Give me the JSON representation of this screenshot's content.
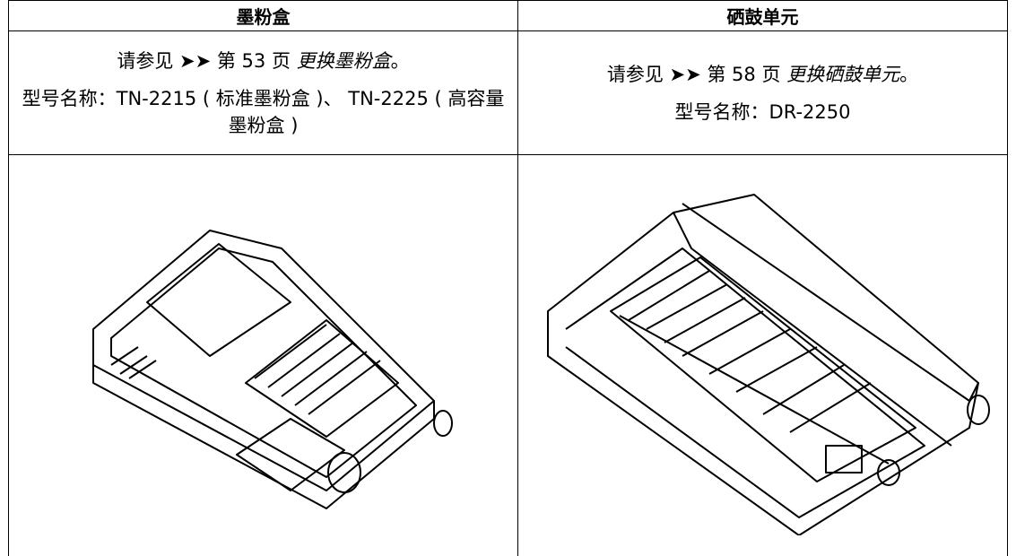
{
  "table": {
    "header": [
      "墨粉盒",
      "硒鼓单元"
    ],
    "rows": [
      [
        {
          "see": "请参见 ➤➤ 第 53 页 ",
          "link": "更换墨粉盒",
          "end": "。",
          "model": "型号名称：TN-2215 ( 标准墨粉盒 )、 TN-2225 ( 高容量墨粉盒 )"
        },
        {
          "see": "请参见 ➤➤ 第 58 页 ",
          "link": "更换硒鼓单元",
          "end": "。",
          "model": "型号名称：DR-2250"
        }
      ]
    ]
  }
}
